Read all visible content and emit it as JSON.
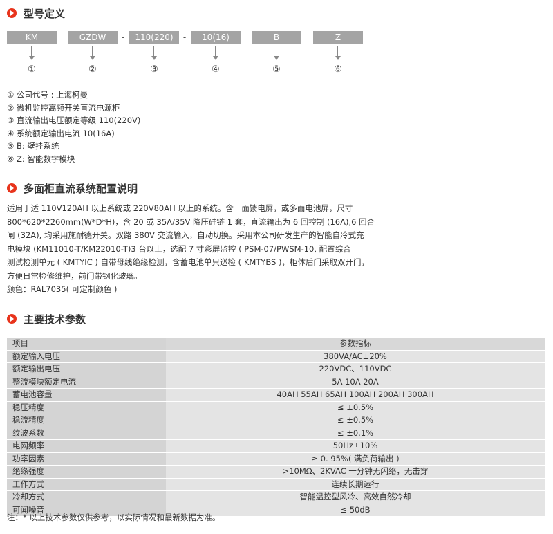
{
  "sections": {
    "model_title": "型号定义",
    "config_title": "多面柜直流系统配置说明",
    "spec_title": "主要技术参数"
  },
  "model_code": {
    "parts": [
      "KM",
      "GZDW",
      "110(220)",
      "10(16)",
      "B",
      "Z"
    ],
    "separators": [
      "-",
      "-"
    ],
    "markers": [
      "①",
      "②",
      "③",
      "④",
      "⑤",
      "⑥"
    ]
  },
  "definitions": [
    "① 公司代号 : 上海柯曼",
    "② 微机监控高频开关直流电源柜",
    "③ 直流输出电压额定等级 110(220V)",
    "④ 系统额定输出电流 10(16A)",
    "⑤ B: 壁挂系统",
    "⑥ Z: 智能数字模块"
  ],
  "config_description": [
    "适用于适 110V120AH 以上系统或 220V80AH 以上的系统。含一面馈电屏，或多面电池屏，尺寸",
    "800*620*2260mm(W*D*H)，含 20 或 35A/35V 降压硅链 1 套，直流输出为 6 回控制 (16A),6 回合",
    "闸 (32A), 均采用施耐德开关。双路 380V 交流输入，自动切换。采用本公司研发生产的智能自冷式充",
    "电模块 (KM11010-T/KM22010-T)3 台以上，选配 7 寸彩屏监控 ( PSM-07/PWSM-10, 配置综合",
    "测试检测单元 ( KMTYIC ) 自带母线绝缘检测，含蓄电池单只巡检 ( KMTYBS )，柜体后门采取双开门，",
    "方便日常检修维护，前门带钢化玻璃。",
    "颜色：RAL7035( 可定制颜色 )"
  ],
  "spec_table": {
    "headers": [
      "项目",
      "参数指标"
    ],
    "rows": [
      [
        "额定输入电压",
        "380VA/AC±20%"
      ],
      [
        "额定输出电压",
        "220VDC、110VDC"
      ],
      [
        "整流模块额定电流",
        "5A 10A 20A"
      ],
      [
        "蓄电池容量",
        "40AH 55AH  65AH  100AH  200AH  300AH"
      ],
      [
        "稳压精度",
        "≤ ±0.5%"
      ],
      [
        "稳流精度",
        "≤ ±0.5%"
      ],
      [
        "纹波系数",
        "≤ ±0.1%"
      ],
      [
        "电网频率",
        "50Hz±10%"
      ],
      [
        "功率因素",
        "≥ 0. 95%( 满负荷输出 )"
      ],
      [
        "绝缘强度",
        ">10MΩ、2KVAC 一分钟无闪络，无击穿"
      ],
      [
        "工作方式",
        "连续长期运行"
      ],
      [
        "冷却方式",
        "智能温控型风冷、高效自然冷却"
      ],
      [
        "可闻噪音",
        "≤ 50dB"
      ]
    ]
  },
  "note": "注：* 以上技术参数仅供参考，以实际情况和最新数据为准。",
  "colors": {
    "accent": "#e8341c",
    "code_box": "#a4a4a4",
    "table_header": "#c8c8c8",
    "table_name_col": "#d4d4d4",
    "table_value_col": "#e4e4e4"
  }
}
